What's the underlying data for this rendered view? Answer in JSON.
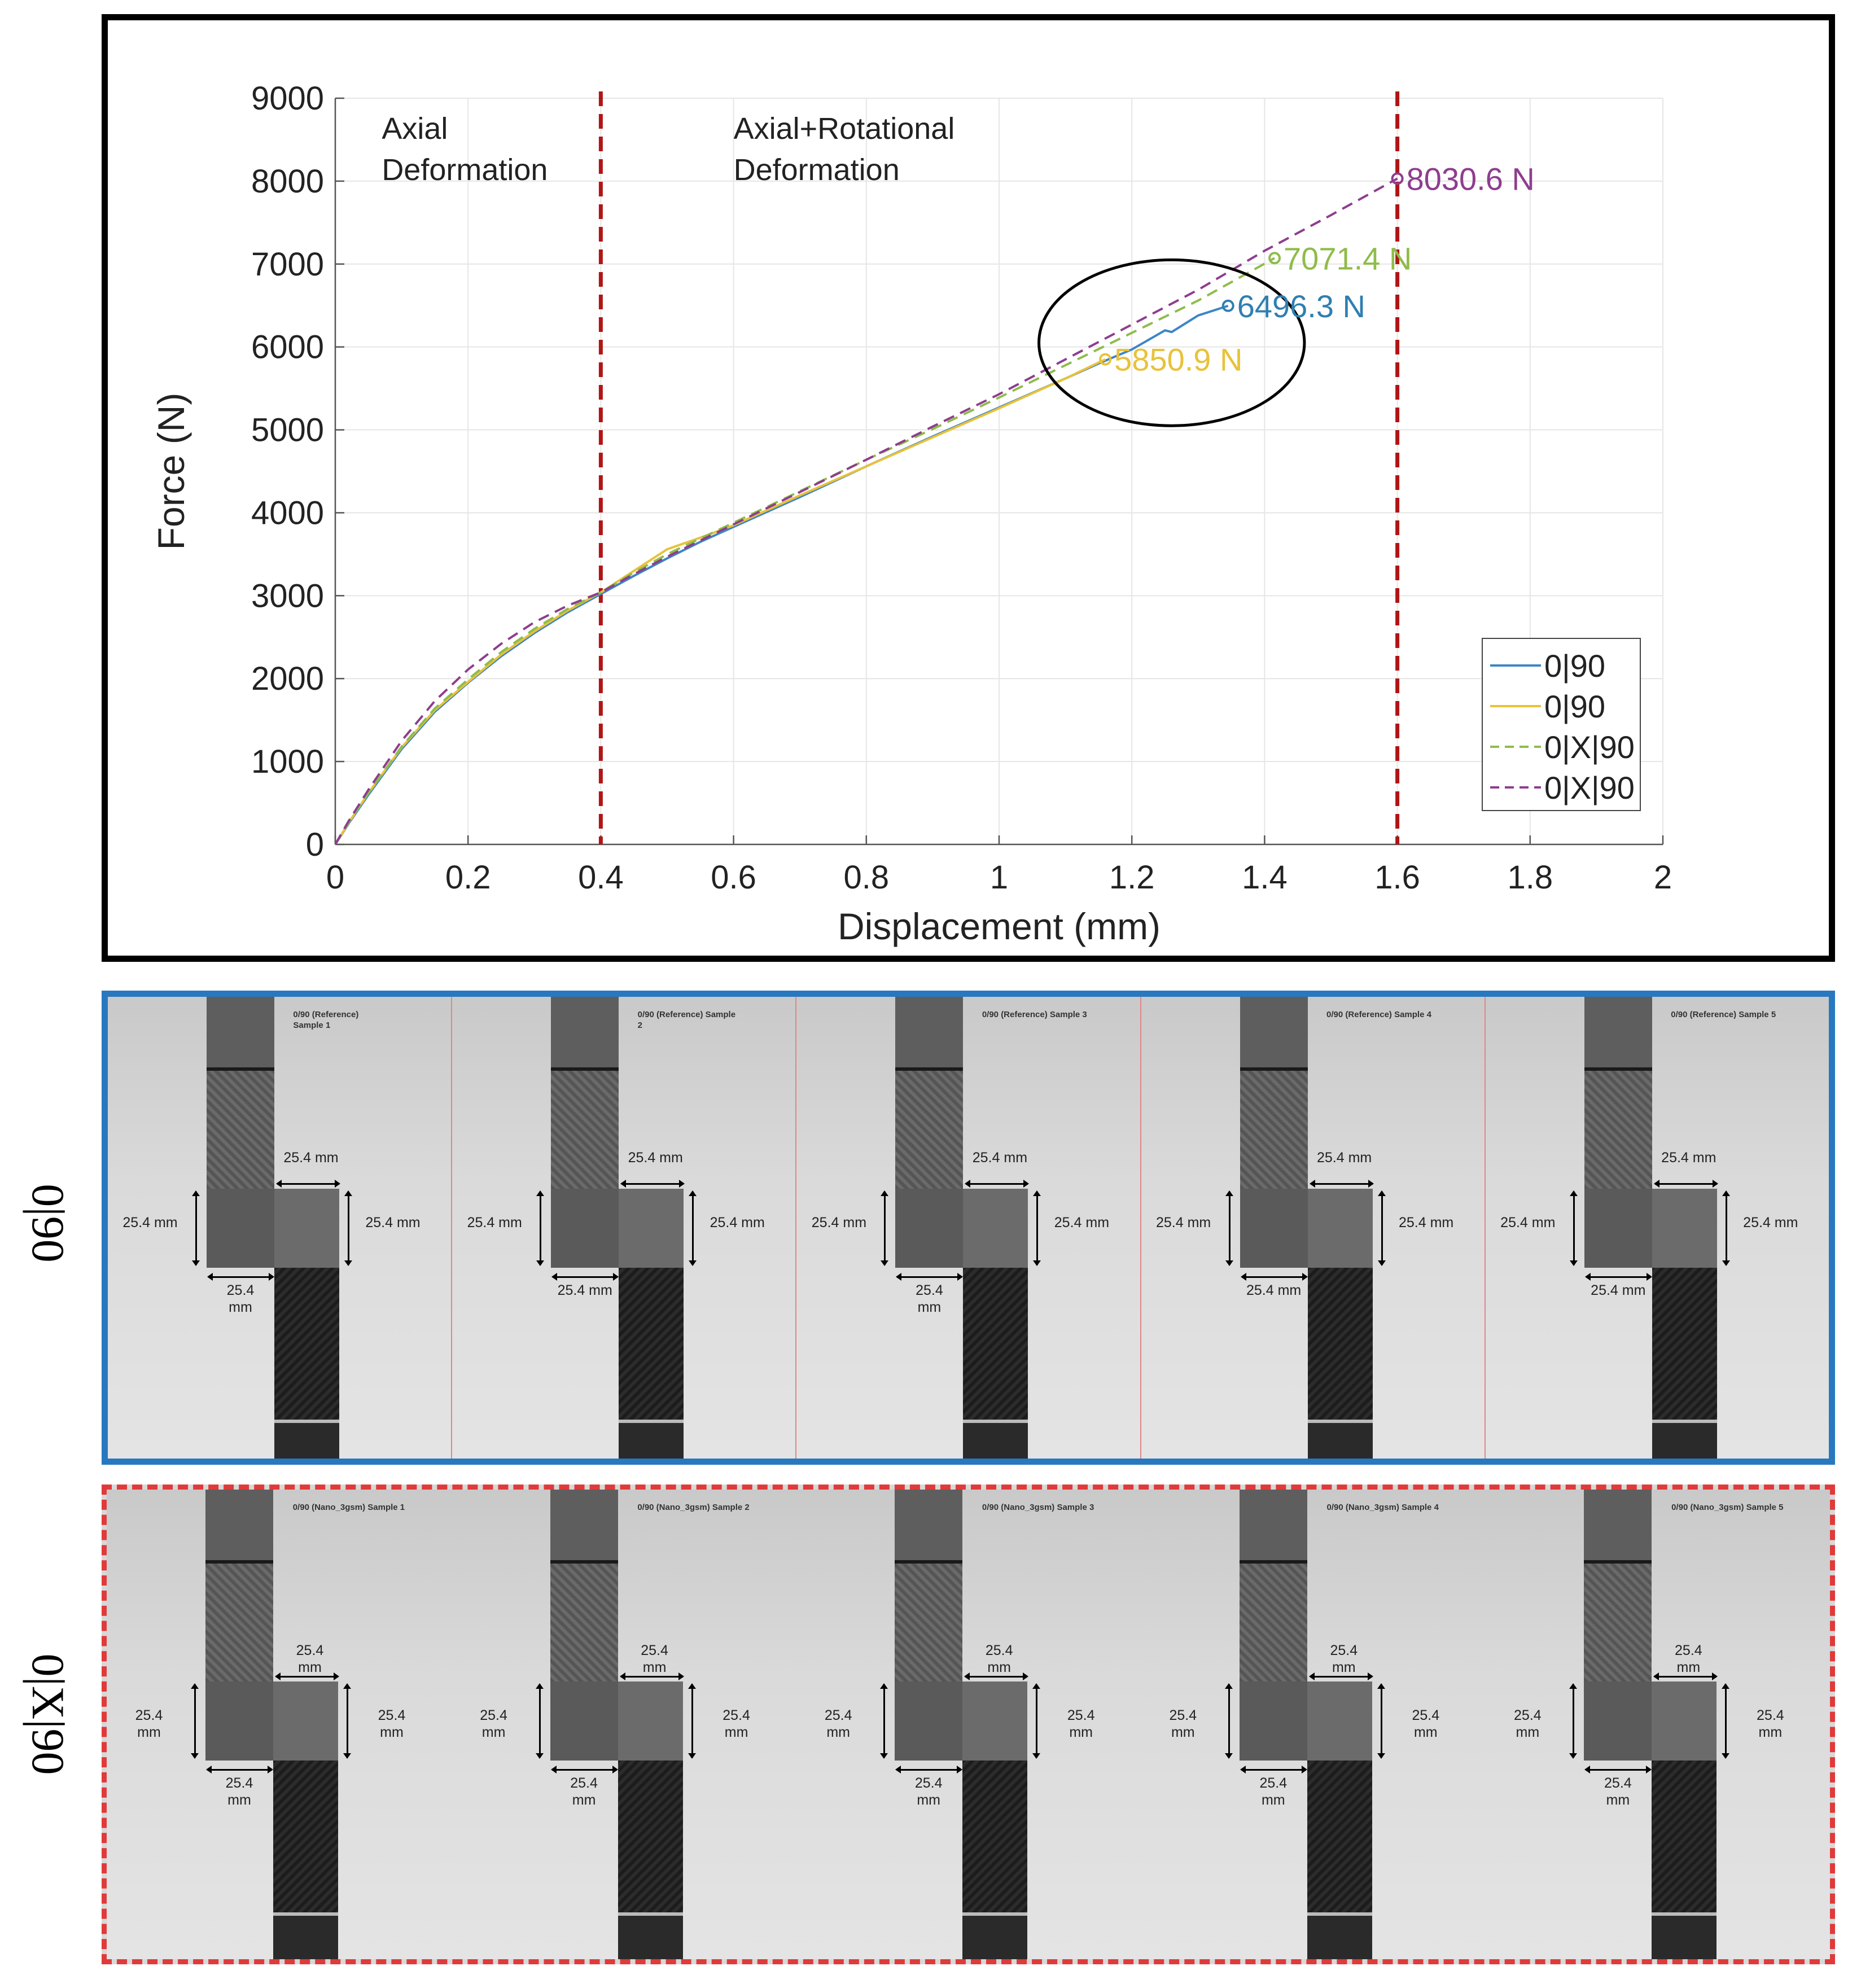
{
  "chart_data": {
    "type": "line",
    "title": "",
    "xlabel": "Displacement (mm)",
    "ylabel": "Force (N)",
    "xlim": [
      0,
      2
    ],
    "ylim": [
      0,
      9000
    ],
    "x_ticks": [
      0,
      0.2,
      0.4,
      0.6,
      0.8,
      1,
      1.2,
      1.4,
      1.6,
      1.8,
      2
    ],
    "x_tick_labels": [
      "0",
      "0.2",
      "0.4",
      "0.6",
      "0.8",
      "1",
      "1.2",
      "1.4",
      "1.6",
      "1.8",
      "2"
    ],
    "y_ticks": [
      0,
      1000,
      2000,
      3000,
      4000,
      5000,
      6000,
      7000,
      8000,
      9000
    ],
    "y_tick_labels": [
      "0",
      "1000",
      "2000",
      "3000",
      "4000",
      "5000",
      "6000",
      "7000",
      "8000",
      "9000"
    ],
    "grid": true,
    "legend_position": "bottom-right",
    "series": [
      {
        "name": "0|90",
        "color": "#3d85c6",
        "dash": "solid",
        "x": [
          0,
          0.02,
          0.05,
          0.1,
          0.15,
          0.2,
          0.25,
          0.3,
          0.35,
          0.4,
          0.45,
          0.5,
          0.55,
          0.6,
          0.7,
          0.8,
          0.9,
          1.0,
          1.1,
          1.15,
          1.2,
          1.25,
          1.26,
          1.28,
          1.3,
          1.345
        ],
        "y": [
          0,
          250,
          600,
          1150,
          1600,
          1950,
          2270,
          2550,
          2800,
          3020,
          3240,
          3450,
          3650,
          3830,
          4190,
          4560,
          4920,
          5270,
          5620,
          5800,
          5970,
          6200,
          6180,
          6280,
          6380,
          6496.3
        ]
      },
      {
        "name": "0|90",
        "color": "#e8c23a",
        "dash": "solid",
        "x": [
          0,
          0.02,
          0.05,
          0.1,
          0.15,
          0.2,
          0.25,
          0.3,
          0.35,
          0.4,
          0.45,
          0.5,
          0.55,
          0.6,
          0.7,
          0.8,
          0.9,
          1.0,
          1.1,
          1.16
        ],
        "y": [
          0,
          260,
          620,
          1170,
          1620,
          1960,
          2290,
          2570,
          2820,
          3040,
          3300,
          3560,
          3700,
          3850,
          4210,
          4560,
          4910,
          5260,
          5620,
          5850.9
        ]
      },
      {
        "name": "0|X|90",
        "color": "#8fbc4a",
        "dash": "dashed",
        "x": [
          0,
          0.02,
          0.05,
          0.1,
          0.15,
          0.2,
          0.25,
          0.3,
          0.35,
          0.4,
          0.45,
          0.5,
          0.6,
          0.7,
          0.8,
          0.9,
          1.0,
          1.1,
          1.2,
          1.3,
          1.415
        ],
        "y": [
          0,
          260,
          620,
          1180,
          1640,
          1990,
          2320,
          2600,
          2840,
          3040,
          3280,
          3500,
          3880,
          4260,
          4640,
          5010,
          5390,
          5780,
          6170,
          6560,
          7071.4
        ]
      },
      {
        "name": "0|X|90",
        "color": "#8e3d8e",
        "dash": "dashed",
        "x": [
          0,
          0.02,
          0.05,
          0.1,
          0.15,
          0.2,
          0.25,
          0.3,
          0.35,
          0.4,
          0.45,
          0.5,
          0.6,
          0.7,
          0.8,
          0.9,
          1.0,
          1.1,
          1.2,
          1.3,
          1.4,
          1.5,
          1.6
        ],
        "y": [
          0,
          280,
          660,
          1250,
          1730,
          2110,
          2420,
          2680,
          2880,
          3040,
          3260,
          3470,
          3860,
          4250,
          4640,
          5040,
          5430,
          5850,
          6270,
          6690,
          7160,
          7590,
          8030.6
        ]
      }
    ],
    "peak_annotations": [
      {
        "label": "8030.6 N",
        "x": 1.6,
        "y": 8030.6,
        "color": "#8e3d8e"
      },
      {
        "label": "7071.4 N",
        "x": 1.415,
        "y": 7071.4,
        "color": "#8fbc4a"
      },
      {
        "label": "6496.3 N",
        "x": 1.345,
        "y": 6496.3,
        "color": "#2f7fb0"
      },
      {
        "label": "5850.9 N",
        "x": 1.16,
        "y": 5850.9,
        "color": "#e8c23a"
      }
    ],
    "vertical_lines": [
      {
        "x": 0.4,
        "color": "#b01515"
      },
      {
        "x": 1.6,
        "color": "#b01515"
      }
    ],
    "region_labels": [
      {
        "line1": "Axial",
        "line2": "Deformation",
        "x": 0.07
      },
      {
        "line1": "Axial+Rotational",
        "line2": "Deformation",
        "x": 0.6
      }
    ],
    "highlight_ellipse": {
      "cx": 1.26,
      "cy": 6050,
      "rx": 0.2,
      "ry": 1000,
      "color": "#000000"
    }
  },
  "panels": {
    "reference": {
      "row_label": "0|90",
      "border_color": "#2878c0",
      "samples": [
        {
          "title": "0/90 (Reference)\nSample 1",
          "top_dim": "25.4 mm",
          "left_dim": "25.4 mm",
          "right_dim": "25.4 mm",
          "bottom_dim": "25.4\nmm"
        },
        {
          "title": "0/90 (Reference) Sample\n2",
          "top_dim": "25.4 mm",
          "left_dim": "25.4 mm",
          "right_dim": "25.4 mm",
          "bottom_dim": "25.4 mm"
        },
        {
          "title": "0/90 (Reference) Sample 3",
          "top_dim": "25.4 mm",
          "left_dim": "25.4 mm",
          "right_dim": "25.4 mm",
          "bottom_dim": "25.4\nmm"
        },
        {
          "title": "0/90 (Reference) Sample 4",
          "top_dim": "25.4 mm",
          "left_dim": "25.4 mm",
          "right_dim": "25.4 mm",
          "bottom_dim": "25.4 mm"
        },
        {
          "title": "0/90 (Reference) Sample 5",
          "top_dim": "25.4 mm",
          "left_dim": "25.4 mm",
          "right_dim": "25.4 mm",
          "bottom_dim": "25.4 mm"
        }
      ]
    },
    "nano": {
      "row_label": "0|X|90",
      "border_color": "#e03a3a",
      "samples": [
        {
          "title": "0/90 (Nano_3gsm) Sample 1",
          "top_dim": "25.4\nmm",
          "left_dim": "25.4\nmm",
          "right_dim": "25.4\nmm",
          "bottom_dim": "25.4\nmm"
        },
        {
          "title": "0/90 (Nano_3gsm) Sample 2",
          "top_dim": "25.4\nmm",
          "left_dim": "25.4\nmm",
          "right_dim": "25.4\nmm",
          "bottom_dim": "25.4\nmm"
        },
        {
          "title": "0/90 (Nano_3gsm) Sample 3",
          "top_dim": "25.4\nmm",
          "left_dim": "25.4\nmm",
          "right_dim": "25.4\nmm",
          "bottom_dim": "25.4\nmm"
        },
        {
          "title": "0/90 (Nano_3gsm) Sample 4",
          "top_dim": "25.4\nmm",
          "left_dim": "25.4\nmm",
          "right_dim": "25.4\nmm",
          "bottom_dim": "25.4\nmm"
        },
        {
          "title": "0/90 (Nano_3gsm) Sample 5",
          "top_dim": "25.4\nmm",
          "left_dim": "25.4\nmm",
          "right_dim": "25.4\nmm",
          "bottom_dim": "25.4\nmm"
        }
      ]
    }
  }
}
